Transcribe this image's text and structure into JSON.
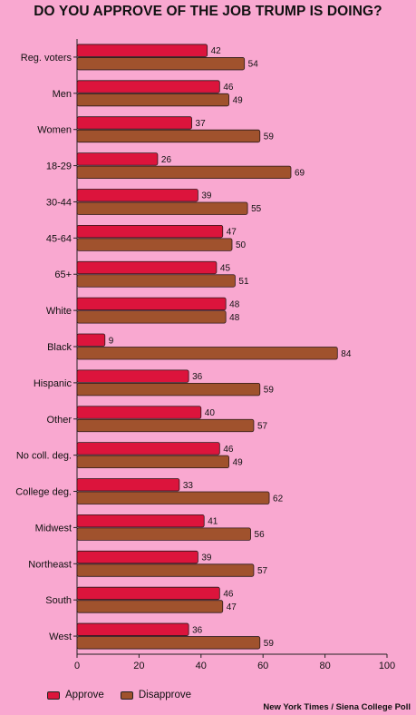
{
  "chart_data": {
    "type": "bar",
    "orientation": "horizontal",
    "title": "DO YOU APPROVE OF THE JOB TRUMP IS DOING?",
    "categories": [
      "Reg. voters",
      "Men",
      "Women",
      "18-29",
      "30-44",
      "45-64",
      "65+",
      "White",
      "Black",
      "Hispanic",
      "Other",
      "No coll. deg.",
      "College deg.",
      "Midwest",
      "Northeast",
      "South",
      "West"
    ],
    "series": [
      {
        "name": "Approve",
        "color": "#dc143c",
        "values": [
          42,
          46,
          37,
          26,
          39,
          47,
          45,
          48,
          9,
          36,
          40,
          46,
          33,
          41,
          39,
          46,
          36
        ]
      },
      {
        "name": "Disapprove",
        "color": "#a0522d",
        "values": [
          54,
          49,
          59,
          69,
          55,
          50,
          51,
          48,
          84,
          59,
          57,
          49,
          62,
          56,
          57,
          47,
          59
        ]
      }
    ],
    "xlim": [
      0,
      100
    ],
    "xticks": [
      0,
      20,
      40,
      60,
      80,
      100
    ],
    "grid": false,
    "legend": "bottom-left",
    "source": "New York Times / Siena College Poll"
  }
}
